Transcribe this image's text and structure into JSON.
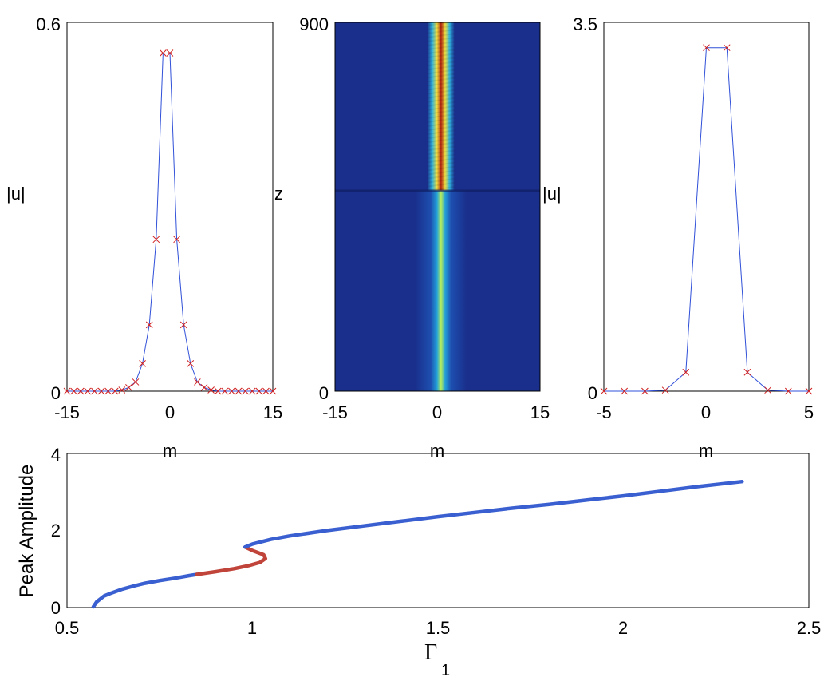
{
  "colors": {
    "curve_line": "#3050d8",
    "marker": "#d02020",
    "stable_branch": "#3a5fd0",
    "unstable_branch": "#c0443a",
    "heat_background": "#1a2f8c"
  },
  "chart_data": [
    {
      "id": "profile-left",
      "type": "line",
      "title": "",
      "xlabel": "m",
      "ylabel": "|u|",
      "xlim": [
        -15,
        15
      ],
      "ylim": [
        0,
        0.6
      ],
      "xticks": [
        "-15",
        "0",
        "15"
      ],
      "yticks": [
        "0",
        "0.6"
      ],
      "x": [
        -15,
        -14,
        -13,
        -12,
        -11,
        -10,
        -9,
        -8,
        -7,
        -6,
        -5,
        -4,
        -3,
        -2,
        -1,
        0,
        1,
        2,
        3,
        4,
        5,
        6,
        7,
        8,
        9,
        10,
        11,
        12,
        13,
        14,
        15
      ],
      "values": [
        0.0,
        0.0,
        0.0,
        0.0,
        0.0,
        0.0,
        0.0,
        0.0,
        0.002,
        0.006,
        0.015,
        0.045,
        0.108,
        0.247,
        0.55,
        0.55,
        0.247,
        0.108,
        0.045,
        0.015,
        0.006,
        0.002,
        0.0,
        0.0,
        0.0,
        0.0,
        0.0,
        0.0,
        0.0,
        0.0,
        0.0
      ]
    },
    {
      "id": "evolution-heatmap",
      "type": "heatmap",
      "title": "",
      "xlabel": "m",
      "ylabel": "z",
      "xlim": [
        -15,
        15
      ],
      "ylim": [
        0,
        900
      ],
      "xticks": [
        "-15",
        "0",
        "15"
      ],
      "yticks": [
        "0",
        "900"
      ],
      "transition_z": 490,
      "lower_core_center_m": 0.5,
      "upper_core_center_m": 0.5
    },
    {
      "id": "profile-right",
      "type": "line",
      "title": "",
      "xlabel": "m",
      "ylabel": "|u|",
      "xlim": [
        -5,
        5
      ],
      "ylim": [
        0,
        3.5
      ],
      "xticks": [
        "-5",
        "0",
        "5"
      ],
      "yticks": [
        "0",
        "3.5"
      ],
      "x": [
        -5,
        -4,
        -3,
        -2,
        -1,
        0,
        1,
        2,
        3,
        4,
        5
      ],
      "values": [
        0.0,
        0.0,
        0.0,
        0.01,
        0.18,
        3.26,
        3.26,
        0.18,
        0.01,
        0.0,
        0.0
      ]
    },
    {
      "id": "bifurcation",
      "type": "line",
      "title": "",
      "xlabel": "Γ",
      "xlabel_sub": "1",
      "ylabel": "Peak Amplitude",
      "xlim": [
        0.5,
        2.5
      ],
      "ylim": [
        0,
        4
      ],
      "xticks": [
        "0.5",
        "1",
        "1.5",
        "2",
        "2.5"
      ],
      "yticks": [
        "0",
        "2",
        "4"
      ],
      "series": [
        {
          "name": "stable-lower",
          "x": [
            0.571,
            0.58,
            0.6,
            0.62,
            0.65,
            0.68,
            0.71,
            0.75,
            0.79,
            0.83,
            0.85
          ],
          "values": [
            0.02,
            0.15,
            0.3,
            0.38,
            0.48,
            0.56,
            0.63,
            0.7,
            0.76,
            0.83,
            0.86
          ]
        },
        {
          "name": "unstable-middle",
          "x": [
            0.85,
            0.9,
            0.95,
            0.99,
            1.02,
            1.035,
            1.03,
            1.0,
            0.98
          ],
          "values": [
            0.86,
            0.93,
            1.01,
            1.09,
            1.17,
            1.27,
            1.37,
            1.48,
            1.57
          ]
        },
        {
          "name": "stable-upper",
          "x": [
            0.98,
            1.0,
            1.05,
            1.1,
            1.2,
            1.3,
            1.4,
            1.5,
            1.6,
            1.7,
            1.8,
            1.9,
            2.0,
            2.1,
            2.2,
            2.32
          ],
          "values": [
            1.57,
            1.65,
            1.77,
            1.86,
            2.0,
            2.12,
            2.24,
            2.36,
            2.47,
            2.58,
            2.68,
            2.79,
            2.9,
            3.02,
            3.14,
            3.27
          ]
        }
      ]
    }
  ]
}
